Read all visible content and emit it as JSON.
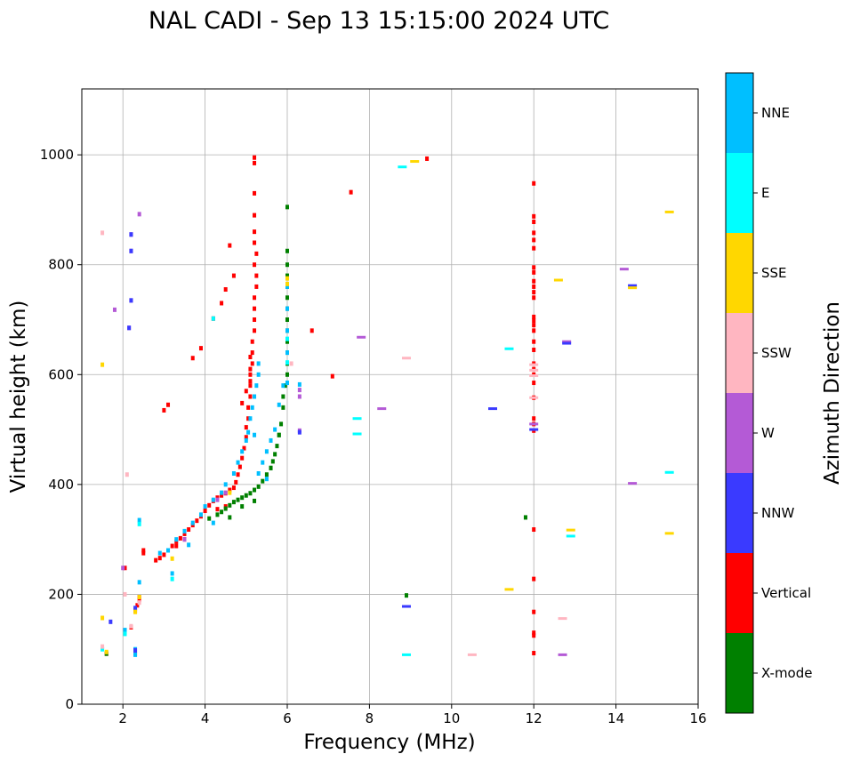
{
  "chart_data": {
    "type": "scatter",
    "title": "NAL CADI - Sep 13 15:15:00 2024 UTC",
    "xlabel": "Frequency (MHz)",
    "ylabel": "Virtual height (km)",
    "xlim": [
      1,
      16
    ],
    "ylim": [
      0,
      1120
    ],
    "xticks": [
      2,
      4,
      6,
      8,
      10,
      12,
      14,
      16
    ],
    "yticks": [
      0,
      200,
      400,
      600,
      800,
      1000
    ],
    "grid": true,
    "colorbar": {
      "label": "Azimuth Direction",
      "categories": [
        "X-mode",
        "Vertical",
        "NNW",
        "W",
        "SSW",
        "SSE",
        "E",
        "NNE"
      ],
      "colors": {
        "X-mode": "#008000",
        "Vertical": "#ff0000",
        "NNW": "#3a3aff",
        "W": "#b45ad6",
        "SSW": "#ffb6c1",
        "SSE": "#ffd700",
        "E": "#00ffff",
        "NNE": "#00bfff"
      }
    },
    "traces": [
      {
        "cat": "Vertical",
        "points": [
          [
            2.8,
            262
          ],
          [
            2.9,
            266
          ],
          [
            3.0,
            272
          ],
          [
            3.1,
            280
          ],
          [
            3.2,
            288
          ],
          [
            3.3,
            296
          ],
          [
            3.4,
            302
          ],
          [
            3.5,
            310
          ],
          [
            3.6,
            318
          ],
          [
            3.7,
            326
          ],
          [
            3.8,
            334
          ],
          [
            3.9,
            342
          ],
          [
            4.0,
            352
          ],
          [
            4.1,
            362
          ],
          [
            4.2,
            370
          ],
          [
            4.3,
            376
          ],
          [
            4.4,
            380
          ],
          [
            4.5,
            384
          ],
          [
            4.6,
            390
          ],
          [
            4.7,
            394
          ],
          [
            4.75,
            404
          ],
          [
            4.8,
            418
          ],
          [
            4.85,
            432
          ],
          [
            4.9,
            448
          ],
          [
            4.95,
            466
          ],
          [
            5.0,
            486
          ],
          [
            5.0,
            504
          ],
          [
            5.05,
            520
          ],
          [
            5.05,
            540
          ],
          [
            5.1,
            560
          ],
          [
            5.1,
            580
          ],
          [
            5.1,
            600
          ],
          [
            5.15,
            620
          ],
          [
            5.15,
            640
          ],
          [
            5.15,
            660
          ],
          [
            5.2,
            680
          ],
          [
            5.2,
            700
          ],
          [
            5.2,
            720
          ],
          [
            5.2,
            740
          ],
          [
            5.25,
            760
          ],
          [
            5.25,
            780
          ],
          [
            5.2,
            800
          ],
          [
            5.25,
            820
          ],
          [
            5.2,
            840
          ],
          [
            5.2,
            860
          ],
          [
            5.2,
            890
          ],
          [
            5.2,
            930
          ],
          [
            5.2,
            985
          ],
          [
            5.2,
            995
          ],
          [
            5.1,
            632
          ],
          [
            5.1,
            610
          ],
          [
            5.1,
            588
          ],
          [
            5.0,
            570
          ],
          [
            4.9,
            548
          ],
          [
            3.7,
            630
          ],
          [
            3.1,
            545
          ],
          [
            3.0,
            535
          ],
          [
            3.9,
            648
          ],
          [
            4.2,
            702
          ],
          [
            4.4,
            730
          ],
          [
            4.5,
            755
          ],
          [
            4.6,
            835
          ],
          [
            4.7,
            780
          ],
          [
            4.3,
            355
          ],
          [
            4.5,
            360
          ],
          [
            3.3,
            288
          ],
          [
            3.5,
            300
          ],
          [
            2.5,
            280
          ],
          [
            2.5,
            275
          ],
          [
            2.4,
            190
          ],
          [
            2.35,
            180
          ],
          [
            2.3,
            170
          ],
          [
            2.05,
            248
          ],
          [
            2.3,
            92
          ],
          [
            6.6,
            680
          ],
          [
            7.1,
            597
          ],
          [
            9.4,
            993
          ],
          [
            7.55,
            932
          ],
          [
            12.0,
            948
          ],
          [
            12.0,
            888
          ],
          [
            12.0,
            878
          ],
          [
            12.0,
            858
          ],
          [
            12.0,
            845
          ],
          [
            12.0,
            830
          ],
          [
            12.0,
            795
          ],
          [
            12.0,
            786
          ],
          [
            12.0,
            770
          ],
          [
            12.0,
            760
          ],
          [
            12.0,
            750
          ],
          [
            12.0,
            740
          ],
          [
            12.0,
            705
          ],
          [
            12.0,
            698
          ],
          [
            12.0,
            690
          ],
          [
            12.0,
            680
          ],
          [
            12.0,
            660
          ],
          [
            12.0,
            645
          ],
          [
            12.0,
            620
          ],
          [
            12.0,
            610
          ],
          [
            12.0,
            600
          ],
          [
            12.0,
            585
          ],
          [
            12.0,
            558
          ],
          [
            12.0,
            520
          ],
          [
            12.0,
            510
          ],
          [
            12.0,
            498
          ],
          [
            12.0,
            318
          ],
          [
            12.0,
            228
          ],
          [
            12.0,
            168
          ],
          [
            12.0,
            130
          ],
          [
            12.0,
            125
          ],
          [
            12.0,
            93
          ],
          [
            1.6,
            92
          ],
          [
            2.2,
            140
          ],
          [
            2.4,
            195
          ]
        ]
      },
      {
        "cat": "X-mode",
        "points": [
          [
            4.1,
            338
          ],
          [
            4.3,
            345
          ],
          [
            4.4,
            350
          ],
          [
            4.5,
            356
          ],
          [
            4.6,
            362
          ],
          [
            4.7,
            368
          ],
          [
            4.8,
            372
          ],
          [
            4.9,
            376
          ],
          [
            5.0,
            380
          ],
          [
            5.1,
            384
          ],
          [
            5.2,
            390
          ],
          [
            5.3,
            396
          ],
          [
            5.4,
            406
          ],
          [
            5.5,
            418
          ],
          [
            5.6,
            430
          ],
          [
            5.65,
            442
          ],
          [
            5.7,
            455
          ],
          [
            5.75,
            470
          ],
          [
            5.8,
            490
          ],
          [
            5.85,
            510
          ],
          [
            5.9,
            540
          ],
          [
            5.9,
            560
          ],
          [
            5.95,
            580
          ],
          [
            6.0,
            600
          ],
          [
            6.0,
            620
          ],
          [
            6.0,
            640
          ],
          [
            6.0,
            660
          ],
          [
            6.0,
            680
          ],
          [
            6.0,
            700
          ],
          [
            6.0,
            720
          ],
          [
            6.0,
            740
          ],
          [
            6.0,
            760
          ],
          [
            6.0,
            780
          ],
          [
            6.0,
            800
          ],
          [
            6.0,
            825
          ],
          [
            6.0,
            905
          ],
          [
            5.8,
            490
          ],
          [
            5.6,
            430
          ],
          [
            4.9,
            360
          ],
          [
            5.2,
            370
          ],
          [
            4.6,
            340
          ],
          [
            11.8,
            340
          ],
          [
            8.9,
            198
          ],
          [
            1.6,
            92
          ]
        ]
      },
      {
        "cat": "NNE",
        "points": [
          [
            2.9,
            275
          ],
          [
            3.1,
            280
          ],
          [
            3.3,
            300
          ],
          [
            3.5,
            315
          ],
          [
            3.7,
            330
          ],
          [
            3.9,
            345
          ],
          [
            4.0,
            360
          ],
          [
            4.2,
            372
          ],
          [
            4.4,
            385
          ],
          [
            4.5,
            400
          ],
          [
            4.7,
            420
          ],
          [
            4.8,
            440
          ],
          [
            4.9,
            460
          ],
          [
            5.0,
            480
          ],
          [
            5.05,
            495
          ],
          [
            5.1,
            520
          ],
          [
            5.15,
            540
          ],
          [
            5.2,
            560
          ],
          [
            5.25,
            580
          ],
          [
            5.3,
            600
          ],
          [
            5.3,
            620
          ],
          [
            5.2,
            490
          ],
          [
            5.3,
            420
          ],
          [
            5.4,
            440
          ],
          [
            5.5,
            460
          ],
          [
            5.6,
            480
          ],
          [
            5.5,
            410
          ],
          [
            5.7,
            500
          ],
          [
            5.8,
            545
          ],
          [
            5.9,
            580
          ],
          [
            6.0,
            585
          ],
          [
            6.0,
            640
          ],
          [
            6.0,
            680
          ],
          [
            6.0,
            720
          ],
          [
            6.0,
            760
          ],
          [
            6.3,
            582
          ],
          [
            2.4,
            335
          ],
          [
            3.6,
            290
          ],
          [
            4.2,
            330
          ],
          [
            2.3,
            100
          ],
          [
            2.3,
            90
          ],
          [
            2.05,
            130
          ],
          [
            2.05,
            135
          ],
          [
            2.4,
            222
          ],
          [
            3.2,
            238
          ]
        ]
      },
      {
        "cat": "E",
        "points": [
          [
            2.4,
            328
          ],
          [
            3.2,
            228
          ],
          [
            4.2,
            702
          ],
          [
            6.0,
            622
          ],
          [
            6.0,
            665
          ],
          [
            7.7,
            520
          ],
          [
            7.7,
            492
          ],
          [
            8.8,
            978
          ],
          [
            11.4,
            647
          ],
          [
            12.9,
            306
          ],
          [
            15.3,
            422
          ],
          [
            8.9,
            90
          ],
          [
            1.5,
            100
          ],
          [
            2.05,
            128
          ]
        ]
      },
      {
        "cat": "W",
        "points": [
          [
            2.0,
            248
          ],
          [
            1.8,
            718
          ],
          [
            2.2,
            855
          ],
          [
            2.2,
            825
          ],
          [
            2.2,
            735
          ],
          [
            2.15,
            685
          ],
          [
            2.4,
            892
          ],
          [
            6.3,
            572
          ],
          [
            6.3,
            560
          ],
          [
            7.8,
            668
          ],
          [
            8.3,
            538
          ],
          [
            12.0,
            510
          ],
          [
            12.8,
            660
          ],
          [
            14.2,
            792
          ],
          [
            14.4,
            402
          ],
          [
            12.7,
            90
          ],
          [
            6.3,
            498
          ],
          [
            3.5,
            300
          ],
          [
            4.3,
            372
          ],
          [
            4.5,
            385
          ]
        ]
      },
      {
        "cat": "NNW",
        "points": [
          [
            2.2,
            855
          ],
          [
            2.2,
            825
          ],
          [
            2.2,
            735
          ],
          [
            2.15,
            685
          ],
          [
            6.3,
            495
          ],
          [
            11.0,
            538
          ],
          [
            12.8,
            657
          ],
          [
            14.4,
            762
          ],
          [
            8.9,
            178
          ],
          [
            1.7,
            150
          ],
          [
            2.3,
            98
          ],
          [
            12.0,
            500
          ],
          [
            2.3,
            175
          ]
        ]
      },
      {
        "cat": "SSW",
        "points": [
          [
            1.5,
            858
          ],
          [
            2.1,
            418
          ],
          [
            2.2,
            142
          ],
          [
            8.9,
            630
          ],
          [
            10.5,
            90
          ],
          [
            12.0,
            618
          ],
          [
            12.0,
            608
          ],
          [
            12.0,
            598
          ],
          [
            12.0,
            558
          ],
          [
            12.7,
            156
          ],
          [
            6.1,
            620
          ],
          [
            1.5,
            105
          ],
          [
            2.05,
            200
          ],
          [
            2.4,
            185
          ]
        ]
      },
      {
        "cat": "SSE",
        "points": [
          [
            1.5,
            618
          ],
          [
            1.5,
            157
          ],
          [
            6.0,
            775
          ],
          [
            9.1,
            988
          ],
          [
            11.4,
            209
          ],
          [
            12.6,
            772
          ],
          [
            12.9,
            317
          ],
          [
            14.4,
            758
          ],
          [
            15.3,
            896
          ],
          [
            15.3,
            311
          ],
          [
            6.0,
            765
          ],
          [
            1.6,
            95
          ],
          [
            2.4,
            195
          ],
          [
            2.3,
            168
          ],
          [
            4.6,
            385
          ],
          [
            3.2,
            265
          ]
        ]
      }
    ]
  }
}
